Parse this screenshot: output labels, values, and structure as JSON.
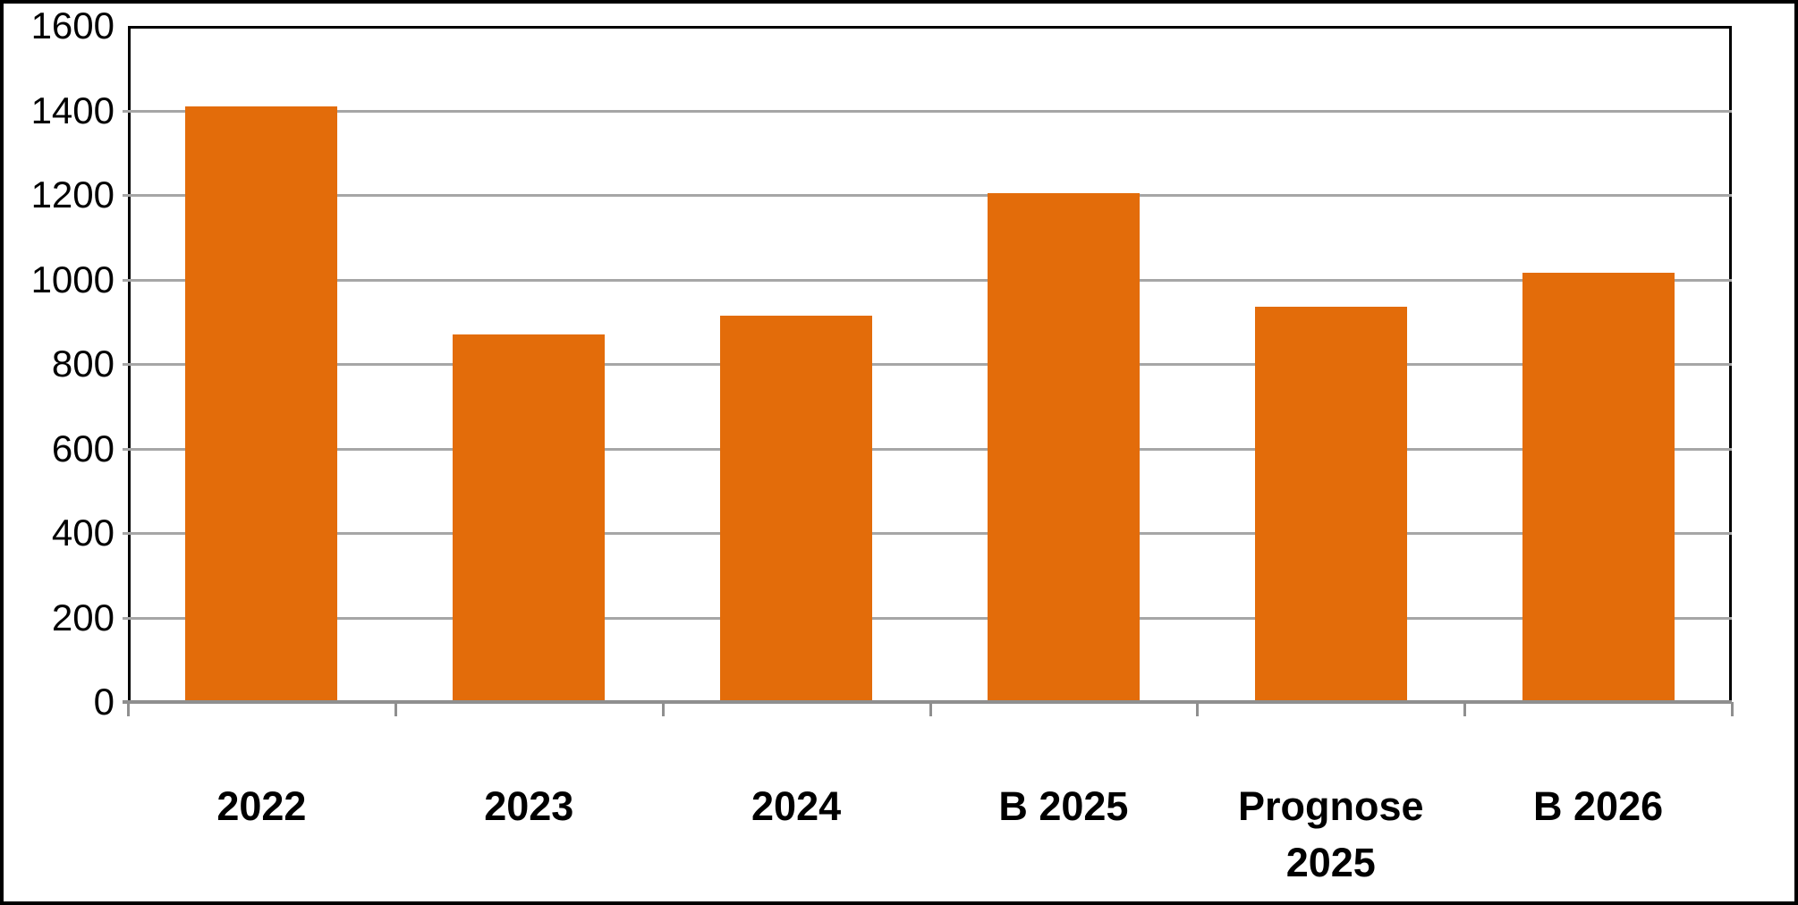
{
  "chart_data": {
    "type": "bar",
    "categories": [
      "2022",
      "2023",
      "2024",
      "B 2025",
      "Prognose 2025",
      "B 2026"
    ],
    "values": [
      1410,
      870,
      915,
      1205,
      935,
      1015
    ],
    "title": "",
    "xlabel": "",
    "ylabel": "",
    "ylim": [
      0,
      1600
    ],
    "ytick_step": 200,
    "ytick_labels": [
      "0",
      "200",
      "400",
      "600",
      "800",
      "1000",
      "1200",
      "1400",
      "1600"
    ],
    "grid": true,
    "legend": false,
    "colors": {
      "bar": "#E36C0A",
      "gridline": "#A6A6A6",
      "axis_line": "#8F8F8F",
      "frame": "#000000",
      "text": "#000000",
      "background": "#FFFFFF"
    }
  }
}
